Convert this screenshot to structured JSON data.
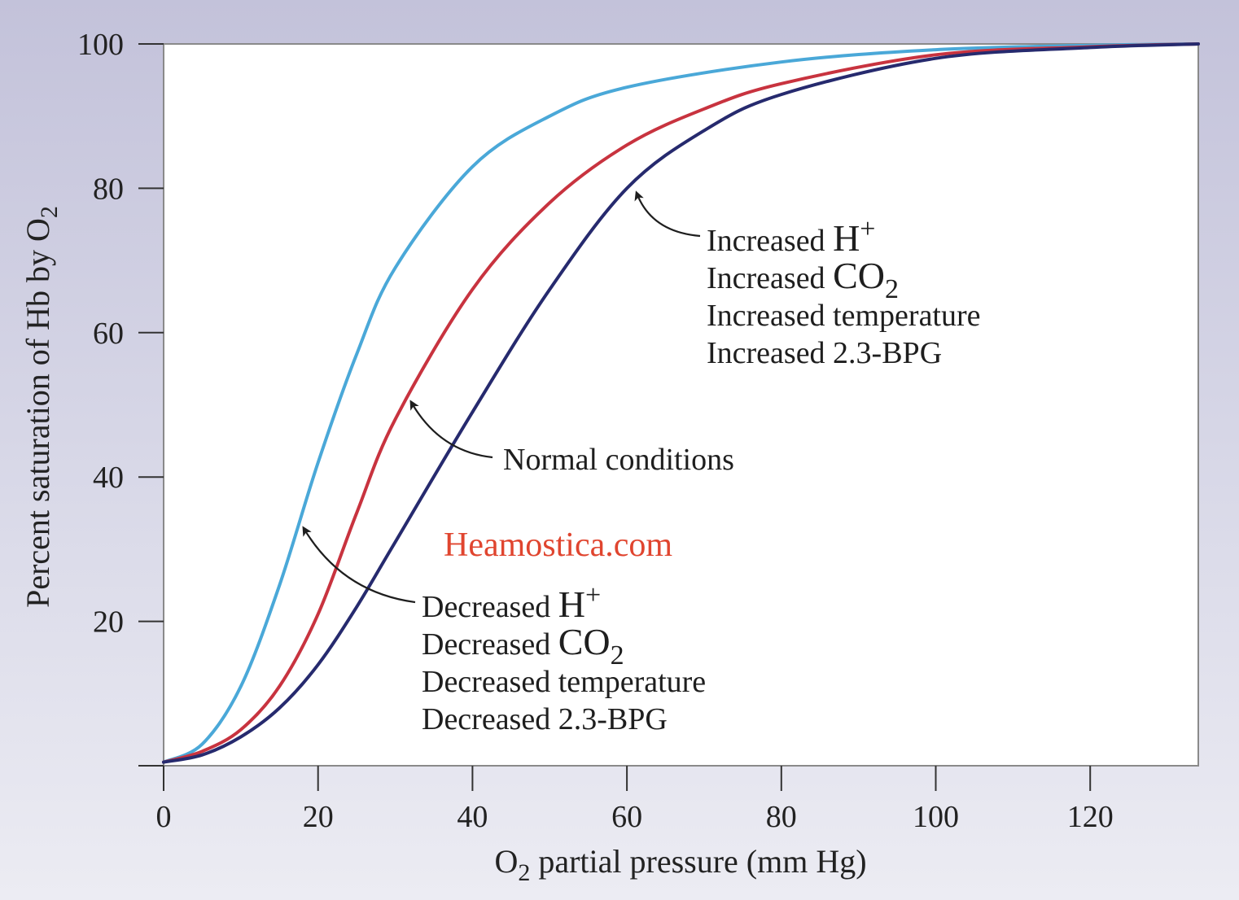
{
  "chart_data": {
    "type": "line",
    "title": "",
    "xlabel_prefix": "O",
    "xlabel_sub": "2",
    "xlabel_rest": " partial pressure (mm Hg)",
    "ylabel_text": "Percent saturation of Hb by O",
    "ylabel_sub": "2",
    "xlim": [
      0,
      134
    ],
    "ylim": [
      0,
      100
    ],
    "xticks": [
      0,
      20,
      40,
      60,
      80,
      100,
      120
    ],
    "yticks": [
      20,
      40,
      60,
      80,
      100
    ],
    "grid": false,
    "series": [
      {
        "name": "Decreased H+, CO2, temperature, 2.3-BPG",
        "color": "#4aa8d8",
        "x": [
          0,
          5,
          10,
          15,
          20,
          25,
          30,
          40,
          50,
          60,
          80,
          100,
          120,
          134
        ],
        "values": [
          0.5,
          3,
          11,
          25,
          42,
          57,
          69,
          83,
          90,
          94,
          97.5,
          99.2,
          99.8,
          100
        ]
      },
      {
        "name": "Normal conditions",
        "color": "#c8333f",
        "x": [
          0,
          5,
          10,
          15,
          20,
          25,
          30,
          40,
          50,
          60,
          70,
          80,
          100,
          120,
          134
        ],
        "values": [
          0.5,
          2,
          5,
          11,
          21,
          35,
          48,
          66,
          78,
          86,
          91,
          94.5,
          98.5,
          99.6,
          100
        ]
      },
      {
        "name": "Increased H+, CO2, temperature, 2.3-BPG",
        "color": "#262a6e",
        "x": [
          0,
          5,
          10,
          15,
          20,
          25,
          30,
          40,
          50,
          60,
          70,
          80,
          100,
          120,
          134
        ],
        "values": [
          0.5,
          1.5,
          4,
          8,
          14,
          22,
          31,
          49,
          66,
          80,
          88,
          93,
          98,
          99.5,
          100
        ]
      }
    ],
    "annotations": {
      "increased": {
        "line1": "Increased ",
        "line2": "Increased ",
        "line3": "Increased temperature",
        "line4": "Increased 2.3-BPG"
      },
      "normal": {
        "text": "Normal conditions"
      },
      "decreased": {
        "line1": "Decreased ",
        "line2": "Decreased ",
        "line3": "Decreased temperature",
        "line4": "Decreased 2.3-BPG"
      },
      "h_symbol": "H",
      "h_sup": "+",
      "co_symbol": "CO",
      "co_sub": "2"
    },
    "watermark": "Heamostica.com"
  },
  "colors": {
    "frame": "#8a8a8a",
    "plot_bg": "#ffffff"
  }
}
